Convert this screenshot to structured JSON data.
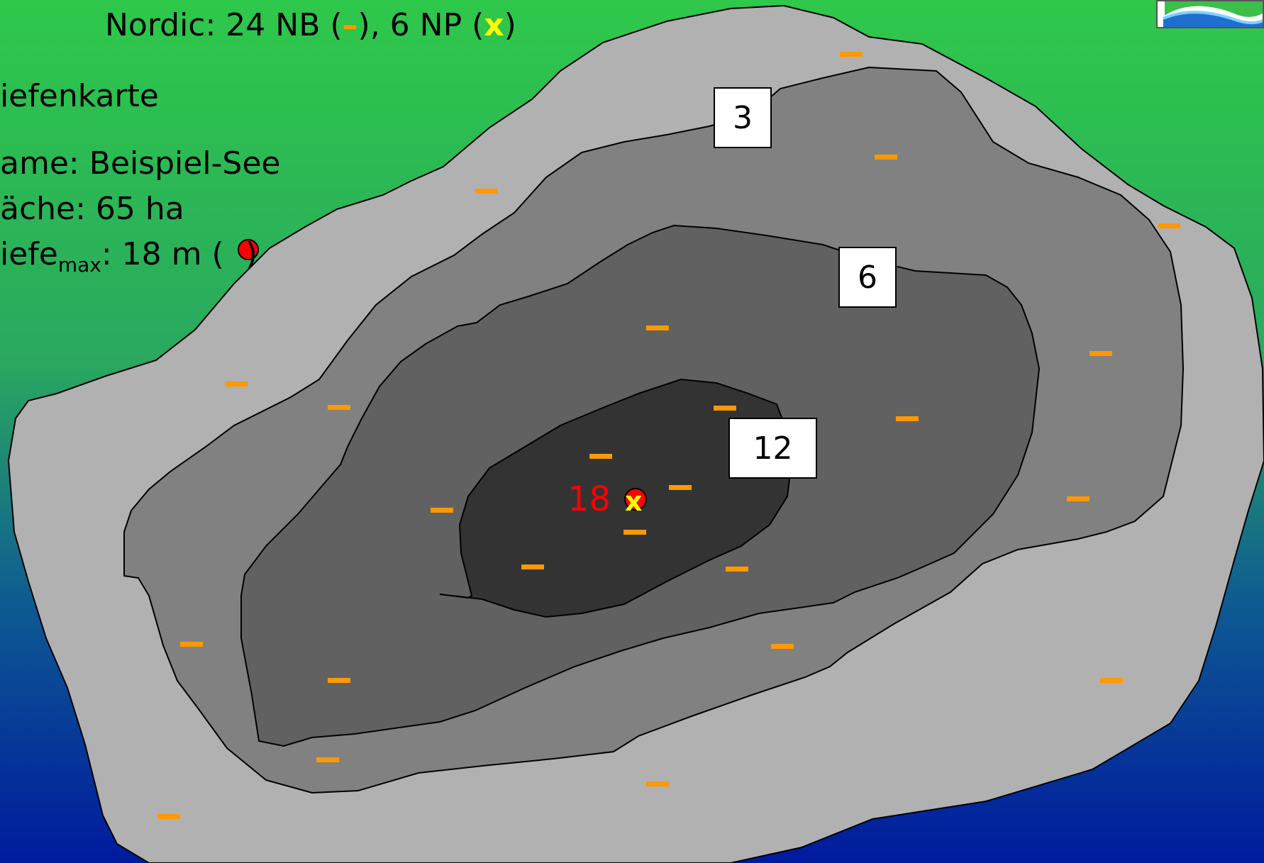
{
  "colors": {
    "bg_top": "#2ec84a",
    "bg_bottom": "#001aa0",
    "zone_0_3": "#b1b1b1",
    "zone_3_6": "#818181",
    "zone_6_12": "#616161",
    "zone_12_18": "#333333",
    "net_nb": "#ff9900",
    "net_np": "#ffff00",
    "max_depth": "#ff0000"
  },
  "header": {
    "prefix": "Nordic: 24 NB (",
    "nb_symbol": "–",
    "middle": "), 6 NP (",
    "np_symbol": "x",
    "suffix": ")"
  },
  "info": {
    "title": "iefenkarte",
    "name": "ame: Beispiel-See",
    "area": "äche: 65 ha",
    "depth_prefix": "iefe",
    "depth_sub": "max",
    "depth_value": ": 18 m (",
    "depth_suffix": ")"
  },
  "depth_labels": [
    "3",
    "6",
    "12"
  ],
  "max_depth_label": "18",
  "max_depth_np_symbol": "x",
  "logo": {
    "icon": "river-wave-logo-icon"
  }
}
